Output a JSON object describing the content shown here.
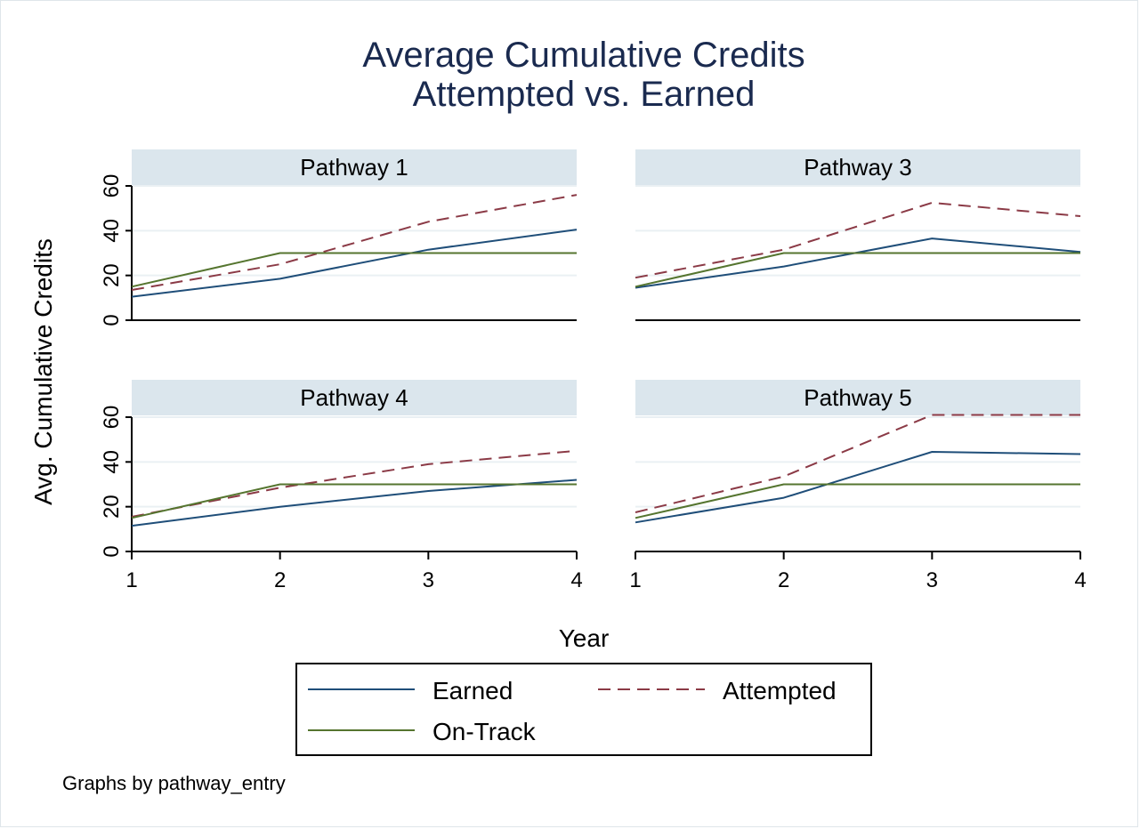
{
  "chart_data": {
    "type": "line",
    "title": [
      "Average Cumulative Credits",
      "Attempted vs. Earned"
    ],
    "xlabel": "Year",
    "ylabel": "Avg. Cumulative Credits",
    "x": [
      1,
      2,
      3,
      4
    ],
    "xticks": [
      "1",
      "2",
      "3",
      "4"
    ],
    "ylim": [
      0,
      60
    ],
    "yticks": [
      "0",
      "20",
      "40",
      "60"
    ],
    "grid": true,
    "note": "Graphs by pathway_entry",
    "legend": {
      "placement": "bottom",
      "entries": [
        {
          "name": "Earned",
          "color": "#1f4e79",
          "dash": "solid"
        },
        {
          "name": "Attempted",
          "color": "#8b3a46",
          "dash": "dashed"
        },
        {
          "name": "On-Track",
          "color": "#55752f",
          "dash": "solid"
        }
      ]
    },
    "panels": [
      {
        "label": "Pathway 1",
        "series": [
          {
            "name": "Earned",
            "values": [
              10.5,
              18.5,
              31.5,
              40.5
            ]
          },
          {
            "name": "Attempted",
            "values": [
              13.5,
              25,
              44,
              56
            ]
          },
          {
            "name": "On-Track",
            "values": [
              15,
              30,
              30,
              30
            ]
          }
        ]
      },
      {
        "label": "Pathway 3",
        "series": [
          {
            "name": "Earned",
            "values": [
              14.5,
              24,
              36.5,
              30.5
            ]
          },
          {
            "name": "Attempted",
            "values": [
              19,
              31.5,
              52.5,
              46.5
            ]
          },
          {
            "name": "On-Track",
            "values": [
              15,
              30,
              30,
              30
            ]
          }
        ]
      },
      {
        "label": "Pathway 4",
        "series": [
          {
            "name": "Earned",
            "values": [
              11.5,
              20,
              27,
              32
            ]
          },
          {
            "name": "Attempted",
            "values": [
              15.5,
              28.5,
              39,
              45
            ]
          },
          {
            "name": "On-Track",
            "values": [
              15,
              30,
              30,
              30
            ]
          }
        ]
      },
      {
        "label": "Pathway 5",
        "series": [
          {
            "name": "Earned",
            "values": [
              13,
              24,
              44.5,
              43.5
            ]
          },
          {
            "name": "Attempted",
            "values": [
              17.5,
              33.5,
              61,
              61
            ]
          },
          {
            "name": "On-Track",
            "values": [
              15,
              30,
              30,
              30
            ]
          }
        ]
      }
    ]
  }
}
